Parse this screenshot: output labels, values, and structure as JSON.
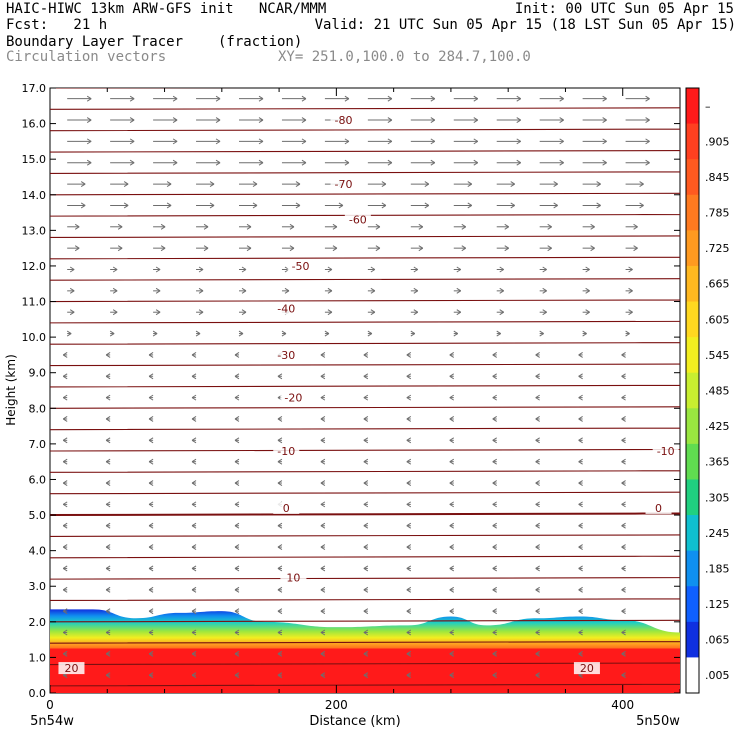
{
  "header": {
    "model_line": "HAIC-HIWC 13km ARW-GFS init   NCAR/MMM",
    "init_line": "Init: 00 UTC Sun 05 Apr 15",
    "fcst_line": "Fcst:   21 h",
    "valid_line": "Valid: 21 UTC Sun 05 Apr 15 (18 LST Sun 05 Apr 15)",
    "field_name": "Boundary Layer Tracer",
    "field_units": "(fraction)",
    "overlay_name": "Circulation vectors",
    "xsec_line": "XY= 251.0,100.0 to 284.7,100.0"
  },
  "axes": {
    "ylabel": "Height (km)",
    "xlabel": "Distance (km)",
    "left_endpoint": "5n54w",
    "right_endpoint": "5n50w"
  },
  "colorbar": {
    "labels": [
      "–",
      ".905",
      ".845",
      ".785",
      ".725",
      ".665",
      ".605",
      ".545",
      ".485",
      ".425",
      ".365",
      ".305",
      ".245",
      ".185",
      ".125",
      ".065",
      ".005"
    ],
    "colors": [
      "#ff1a1a",
      "#ff4020",
      "#ff5a20",
      "#ff7a20",
      "#ff9a20",
      "#ffb820",
      "#ffd820",
      "#f2ee20",
      "#c8ee30",
      "#9ae640",
      "#60dc50",
      "#20d080",
      "#10c0d0",
      "#1090f0",
      "#1060ff",
      "#1030e0",
      "#ffffff"
    ]
  },
  "chart_data": {
    "type": "heatmap",
    "title": "Boundary Layer Tracer (fraction)",
    "xlabel": "Distance (km)",
    "ylabel": "Height (km)",
    "xlim": [
      0,
      440
    ],
    "ylim": [
      0,
      17
    ],
    "x_ticks": [
      0,
      200,
      400
    ],
    "y_ticks": [
      "0.0",
      "1.0",
      "2.0",
      "3.0",
      "4.0",
      "5.0",
      "6.0",
      "7.0",
      "8.0",
      "9.0",
      "10.0",
      "11.0",
      "12.0",
      "13.0",
      "14.0",
      "15.0",
      "16.0",
      "17.0"
    ],
    "boundary_layer_top_km": [
      {
        "x": 0,
        "top": 2.35
      },
      {
        "x": 30,
        "top": 2.35
      },
      {
        "x": 60,
        "top": 2.1
      },
      {
        "x": 90,
        "top": 2.25
      },
      {
        "x": 120,
        "top": 2.3
      },
      {
        "x": 150,
        "top": 2.0
      },
      {
        "x": 200,
        "top": 1.85
      },
      {
        "x": 250,
        "top": 1.9
      },
      {
        "x": 280,
        "top": 2.15
      },
      {
        "x": 305,
        "top": 1.9
      },
      {
        "x": 340,
        "top": 2.1
      },
      {
        "x": 370,
        "top": 2.15
      },
      {
        "x": 400,
        "top": 2.05
      },
      {
        "x": 440,
        "top": 1.7
      }
    ],
    "temperature_contours": {
      "units": "degC",
      "levels": [
        {
          "label": "-80",
          "height_km": 16.1,
          "label_x_km": 205
        },
        {
          "label": "-70",
          "height_km": 14.3,
          "label_x_km": 205
        },
        {
          "label": "-60",
          "height_km": 13.3,
          "label_x_km": 215
        },
        {
          "label": "-50",
          "height_km": 12.0,
          "label_x_km": 175
        },
        {
          "label": "-40",
          "height_km": 10.8,
          "label_x_km": 165
        },
        {
          "label": "-30",
          "height_km": 9.5,
          "label_x_km": 165
        },
        {
          "label": "-20",
          "height_km": 8.3,
          "label_x_km": 170
        },
        {
          "label": "-10",
          "height_km": 6.8,
          "label_x_km": 165
        },
        {
          "label": "-10",
          "height_km": 6.8,
          "label_x_km": 430
        },
        {
          "label": "0",
          "height_km": 5.2,
          "label_x_km": 165
        },
        {
          "label": "0",
          "height_km": 5.2,
          "label_x_km": 425
        },
        {
          "label": "10",
          "height_km": 3.25,
          "label_x_km": 170
        },
        {
          "label": "20",
          "height_km": 0.7,
          "label_x_km": 15
        },
        {
          "label": "20",
          "height_km": 0.7,
          "label_x_km": 375
        }
      ]
    }
  }
}
